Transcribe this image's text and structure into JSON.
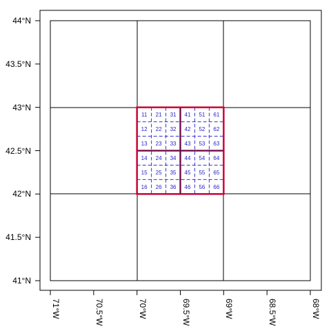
{
  "map": {
    "x_ticks": [
      "71°W",
      "70.5°W",
      "70°W",
      "69.5°W",
      "69°W",
      "68.5°W",
      "68°W"
    ],
    "y_ticks": [
      "44°N",
      "43.5°N",
      "43°N",
      "42.5°N",
      "42°N",
      "41.5°N",
      "41°N"
    ],
    "lon_range": [
      -71,
      -68
    ],
    "lat_range": [
      41,
      44
    ],
    "coarse_grid_deg": 1,
    "medium_grid_deg": 0.5,
    "fine_grid_deg": 0.1666667,
    "colors": {
      "coarse_lines": "#000000",
      "medium_lines": "#cc0033",
      "fine_lines": "#3333cc",
      "cell_labels": "#2424c8"
    },
    "cell_labels": [
      [
        "11",
        "21",
        "31",
        "41",
        "51",
        "61"
      ],
      [
        "12",
        "22",
        "32",
        "42",
        "52",
        "62"
      ],
      [
        "13",
        "23",
        "33",
        "43",
        "53",
        "63"
      ],
      [
        "14",
        "24",
        "34",
        "44",
        "54",
        "64"
      ],
      [
        "15",
        "25",
        "35",
        "45",
        "55",
        "65"
      ],
      [
        "16",
        "26",
        "36",
        "46",
        "56",
        "66"
      ]
    ]
  }
}
